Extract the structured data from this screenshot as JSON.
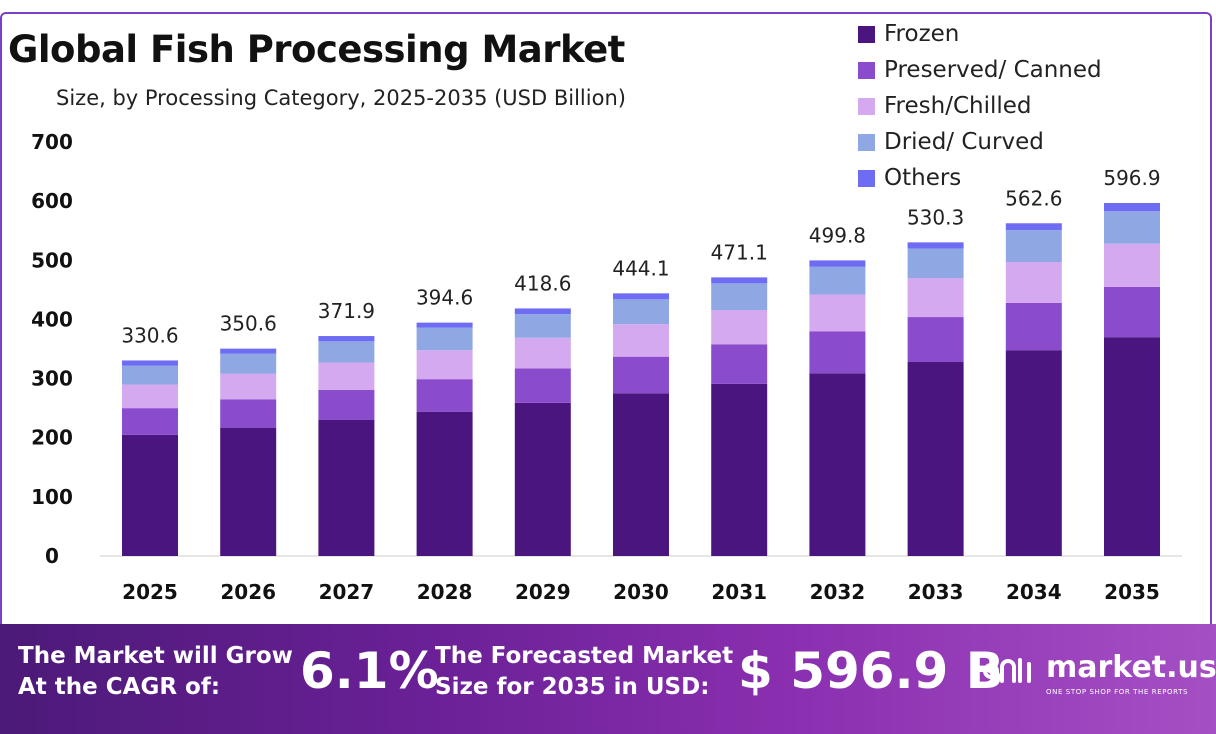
{
  "chart_data": {
    "type": "bar",
    "stacked": true,
    "title": "Global Fish Processing Market",
    "subtitle": "Size, by Processing Category, 2025-2035 (USD Billion)",
    "categories": [
      "2025",
      "2026",
      "2027",
      "2028",
      "2029",
      "2030",
      "2031",
      "2032",
      "2033",
      "2034",
      "2035"
    ],
    "totals": [
      "330.6",
      "350.6",
      "371.9",
      "394.6",
      "418.6",
      "444.1",
      "471.1",
      "499.8",
      "530.3",
      "562.6",
      "596.9"
    ],
    "series": [
      {
        "name": "Frozen",
        "color": "#4b1580",
        "values": [
          205,
          217,
          230,
          244,
          259,
          275,
          291,
          309,
          328,
          348,
          370
        ]
      },
      {
        "name": "Preserved/ Canned",
        "color": "#8a4ccc",
        "values": [
          45,
          48,
          51,
          55,
          58,
          62,
          67,
          71,
          76,
          80,
          85
        ]
      },
      {
        "name": "Fresh/Chilled",
        "color": "#d4a9ef",
        "values": [
          40,
          43,
          46,
          49,
          52,
          55,
          58,
          62,
          66,
          69,
          73
        ]
      },
      {
        "name": "Dried/ Curved",
        "color": "#8fa8e3",
        "values": [
          32,
          34,
          36,
          38,
          40,
          42,
          45,
          47,
          50,
          54,
          55
        ]
      },
      {
        "name": "Others",
        "color": "#6e6cf2",
        "values": [
          8.6,
          8.6,
          8.9,
          8.6,
          9.6,
          10.1,
          10.1,
          10.8,
          10.3,
          11.6,
          13.9
        ]
      }
    ],
    "yticks": [
      "0",
      "100",
      "200",
      "300",
      "400",
      "500",
      "600",
      "700"
    ],
    "ylim": [
      0,
      700
    ],
    "legend_position": "top-right",
    "grid": false
  },
  "banner": {
    "cagr_text": "The Market will Grow\nAt the CAGR of:",
    "cagr_value": "6.1%",
    "forecast_text": "The Forecasted Market\nSize for 2035 in USD:",
    "forecast_value": "$ 596.9 B",
    "brand_name": "market.us",
    "brand_tagline": "ONE STOP SHOP FOR THE REPORTS"
  }
}
